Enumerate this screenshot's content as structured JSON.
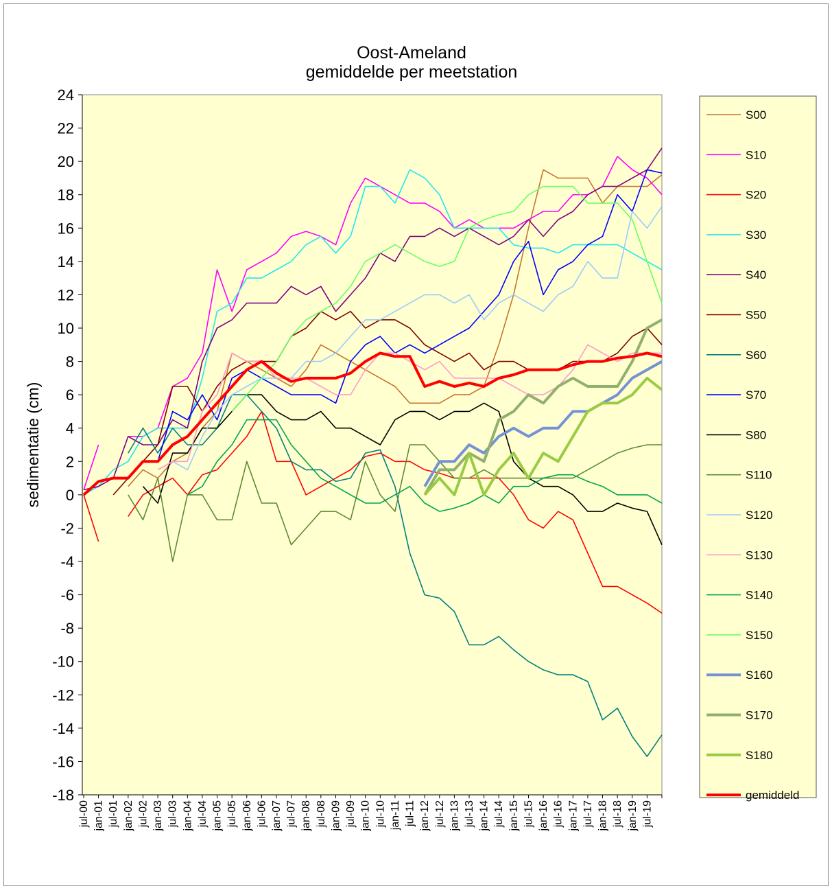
{
  "chart_data": {
    "type": "line",
    "title": "Oost-Ameland",
    "subtitle": "gemiddelde per meetstation",
    "y_label": "sedimentatie (cm)",
    "categories": [
      "jul-00",
      "jan-01",
      "jul-01",
      "jan-02",
      "jul-02",
      "jan-03",
      "jul-03",
      "jan-04",
      "jul-04",
      "jan-05",
      "jul-05",
      "jan-06",
      "jul-06",
      "jan-07",
      "jul-07",
      "jan-08",
      "jul-08",
      "jan-09",
      "jul-09",
      "jan-10",
      "jul-10",
      "jan-11",
      "jul-11",
      "jan-12",
      "jul-12",
      "jan-13",
      "jul-13",
      "jan-14",
      "jul-14",
      "jan-15",
      "jul-15",
      "jan-16",
      "jul-16",
      "jan-17",
      "jul-17",
      "jan-18",
      "jul-18",
      "jan-19",
      "jul-19",
      null
    ],
    "ylim": [
      -18,
      24
    ],
    "yticks": [
      -18,
      -16,
      -14,
      -12,
      -10,
      -8,
      -6,
      -4,
      -2,
      0,
      2,
      4,
      6,
      8,
      10,
      12,
      14,
      16,
      18,
      20,
      22,
      24
    ],
    "series": [
      {
        "name": "S00",
        "color": "#c8742f",
        "width": 1.6,
        "values": [
          null,
          null,
          null,
          0.5,
          1.5,
          1,
          2,
          2.5,
          4,
          5,
          8.5,
          8,
          7.5,
          7,
          6.5,
          7.5,
          9,
          8.5,
          8,
          7.5,
          7,
          6.5,
          5.5,
          5.5,
          5.5,
          6,
          6,
          6.5,
          9,
          12,
          16,
          19.5,
          19,
          19,
          19,
          17.5,
          18.5,
          18.5,
          18.5,
          19.2
        ]
      },
      {
        "name": "S10",
        "color": "#ff00ff",
        "width": 1.6,
        "values": [
          0.3,
          3,
          null,
          3.5,
          3.5,
          4,
          6.5,
          7,
          8.5,
          13.5,
          11,
          13.5,
          14,
          14.5,
          15.5,
          15.8,
          15.5,
          15,
          17.5,
          19,
          18.5,
          18,
          17.5,
          17.5,
          17,
          16,
          16.5,
          16,
          16,
          16,
          16.5,
          17,
          17,
          18,
          18,
          18.5,
          20.3,
          19.5,
          19,
          18
        ]
      },
      {
        "name": "S20",
        "color": "#ff0000",
        "width": 1.6,
        "values": [
          0,
          -2.8,
          null,
          -1.3,
          0,
          0.5,
          1,
          0,
          1.2,
          1.5,
          2.5,
          3.5,
          5,
          2,
          2,
          0,
          0.5,
          1,
          1.5,
          2.3,
          2.5,
          2,
          2,
          1.5,
          1.3,
          1,
          1,
          1,
          1,
          0,
          -1.5,
          -2,
          -1,
          -1.5,
          -3.5,
          -5.5,
          -5.5,
          -6,
          -6.5,
          -7.1
        ]
      },
      {
        "name": "S30",
        "color": "#22e6f0",
        "width": 1.6,
        "values": [
          0,
          0.5,
          1.5,
          2,
          3.5,
          4,
          4,
          4,
          7,
          11,
          11.5,
          13,
          13,
          13.5,
          14,
          15,
          15.5,
          14.5,
          15.5,
          18.5,
          18.5,
          17.5,
          19.5,
          19,
          18,
          16,
          16,
          16,
          16,
          15,
          14.8,
          14.8,
          14.5,
          15,
          15,
          15,
          15,
          14.5,
          14,
          13.5
        ]
      },
      {
        "name": "S40",
        "color": "#800080",
        "width": 1.6,
        "values": [
          0.3,
          0.5,
          1,
          3.5,
          3,
          3,
          4.5,
          4,
          8,
          10,
          10.5,
          11.5,
          11.5,
          11.5,
          12.5,
          12,
          12.5,
          11,
          12,
          13,
          14.5,
          14,
          15.5,
          15.5,
          16,
          15.5,
          16,
          15.5,
          15,
          15.5,
          16.5,
          15.5,
          16.5,
          17,
          18,
          18.5,
          18.5,
          19,
          19.5,
          20.8
        ]
      },
      {
        "name": "S50",
        "color": "#800000",
        "width": 1.6,
        "values": [
          null,
          null,
          0,
          1,
          2,
          3,
          6.5,
          6.5,
          5,
          6.5,
          7.5,
          8,
          8,
          8,
          9.5,
          10,
          11,
          10.5,
          11,
          10,
          10.5,
          10.5,
          10,
          9,
          8.5,
          8,
          8.5,
          7.5,
          8,
          8,
          7.5,
          7.5,
          7.5,
          8,
          8,
          8,
          8.5,
          9.5,
          10,
          9
        ]
      },
      {
        "name": "S60",
        "color": "#008080",
        "width": 1.6,
        "values": [
          null,
          null,
          null,
          2.5,
          4,
          2.5,
          4,
          3,
          3,
          4,
          6,
          6,
          5,
          4,
          2,
          1.5,
          1.5,
          0.8,
          1,
          2.5,
          2.7,
          0.5,
          -3.5,
          -6,
          -6.2,
          -7,
          -9,
          -9,
          -8.5,
          -9.3,
          -10,
          -10.5,
          -10.8,
          -10.8,
          -11.2,
          -13.5,
          -12.8,
          -14.5,
          -15.7,
          -14.4
        ]
      },
      {
        "name": "S70",
        "color": "#0000ff",
        "width": 1.6,
        "values": [
          null,
          null,
          null,
          null,
          null,
          2,
          5,
          4.5,
          6,
          4.5,
          7,
          7.5,
          7,
          6.5,
          6,
          6,
          6,
          5.5,
          8,
          9,
          9.5,
          8.5,
          9,
          8.5,
          9,
          9.5,
          10,
          11,
          12,
          14,
          15.2,
          12,
          13.5,
          14,
          15,
          15.5,
          18,
          17,
          19.5,
          19.3
        ]
      },
      {
        "name": "S80",
        "color": "#000000",
        "width": 1.6,
        "values": [
          null,
          null,
          null,
          null,
          0.5,
          -0.5,
          2.5,
          2.5,
          4,
          4,
          5,
          6,
          6,
          5,
          4.5,
          4.5,
          5,
          4,
          4,
          3.5,
          3,
          4.5,
          5,
          5,
          4.5,
          5,
          5,
          5.5,
          5,
          2,
          1,
          0.5,
          0.5,
          0,
          -1,
          -1,
          -0.5,
          -0.8,
          -1,
          -3
        ]
      },
      {
        "name": "S110",
        "color": "#5f8a35",
        "width": 1.6,
        "values": [
          null,
          null,
          null,
          0,
          -1.5,
          1,
          -4,
          0,
          0,
          -1.5,
          -1.5,
          2,
          -0.5,
          -0.5,
          -3,
          -2,
          -1,
          -1,
          -1.5,
          2,
          0,
          -1,
          3,
          3,
          2,
          1,
          1,
          1.5,
          1,
          1,
          1,
          1,
          1,
          1,
          1.5,
          2,
          2.5,
          2.8,
          3,
          3
        ]
      },
      {
        "name": "S120",
        "color": "#99ccff",
        "width": 1.6,
        "values": [
          null,
          null,
          null,
          null,
          null,
          1.5,
          2,
          1.5,
          3.5,
          5,
          6,
          6.5,
          7,
          7,
          7,
          8,
          8,
          8.5,
          9.5,
          10.5,
          10.5,
          11,
          11.5,
          12,
          12,
          11.5,
          12,
          10.5,
          11.5,
          12,
          11.5,
          11,
          12,
          12.5,
          14,
          13,
          13,
          17,
          16,
          17.3
        ]
      },
      {
        "name": "S130",
        "color": "#ff99cc",
        "width": 1.6,
        "values": [
          null,
          null,
          null,
          null,
          null,
          1.5,
          2,
          2,
          5,
          6,
          8.5,
          8,
          8,
          7,
          7,
          7,
          6.5,
          6,
          6,
          7.5,
          8.5,
          8.5,
          8,
          7.5,
          8,
          7,
          7,
          7,
          7,
          6.5,
          6,
          6,
          6.5,
          7.5,
          9,
          8.5,
          8,
          8.5,
          8.5,
          8.5
        ]
      },
      {
        "name": "S140",
        "color": "#00a550",
        "width": 1.6,
        "values": [
          null,
          null,
          null,
          null,
          null,
          null,
          null,
          0,
          0.5,
          2,
          3,
          4.5,
          4.5,
          4.5,
          3,
          2,
          1,
          0.5,
          0,
          -0.5,
          -0.5,
          0,
          0.5,
          -0.5,
          -1,
          -0.8,
          -0.5,
          0,
          -0.5,
          0.5,
          0.5,
          1,
          1.2,
          1.2,
          0.8,
          0.5,
          0,
          0,
          0,
          -0.5
        ]
      },
      {
        "name": "S150",
        "color": "#66ff66",
        "width": 1.6,
        "values": [
          null,
          null,
          null,
          null,
          null,
          null,
          null,
          null,
          null,
          null,
          5,
          6,
          7,
          8,
          9.5,
          10.5,
          11,
          11.5,
          12.5,
          14,
          14.5,
          15,
          14.5,
          14,
          13.7,
          14,
          16,
          16.5,
          16.8,
          17,
          18,
          18.5,
          18.5,
          18.5,
          17.5,
          17.5,
          17.5,
          16.5,
          14,
          11.5
        ]
      },
      {
        "name": "S160",
        "color": "#7492d4",
        "width": 4,
        "values": [
          null,
          null,
          null,
          null,
          null,
          null,
          null,
          null,
          null,
          null,
          null,
          null,
          null,
          null,
          null,
          null,
          null,
          null,
          null,
          null,
          null,
          null,
          null,
          0.5,
          2,
          2,
          3,
          2.5,
          3.5,
          4,
          3.5,
          4,
          4,
          5,
          5,
          5.5,
          6,
          7,
          7.5,
          8
        ]
      },
      {
        "name": "S170",
        "color": "#92b06d",
        "width": 4,
        "values": [
          null,
          null,
          null,
          null,
          null,
          null,
          null,
          null,
          null,
          null,
          null,
          null,
          null,
          null,
          null,
          null,
          null,
          null,
          null,
          null,
          null,
          null,
          null,
          0,
          1.5,
          1.5,
          2.5,
          2,
          4.5,
          5,
          6,
          5.5,
          6.5,
          7,
          6.5,
          6.5,
          6.5,
          8,
          10,
          10.5
        ]
      },
      {
        "name": "S180",
        "color": "#99cc44",
        "width": 4,
        "values": [
          null,
          null,
          null,
          null,
          null,
          null,
          null,
          null,
          null,
          null,
          null,
          null,
          null,
          null,
          null,
          null,
          null,
          null,
          null,
          null,
          null,
          null,
          null,
          0,
          1,
          0,
          2.5,
          0,
          1.5,
          2.5,
          1,
          2.5,
          2,
          3.5,
          5,
          5.5,
          5.5,
          6,
          7,
          6.3
        ]
      },
      {
        "name": "gemiddeld",
        "color": "#ff0000",
        "width": 4,
        "values": [
          0,
          0.8,
          1,
          1,
          2,
          2,
          3,
          3.5,
          4.5,
          5.5,
          6.5,
          7.5,
          8,
          7.3,
          6.8,
          7,
          7,
          7,
          7.3,
          8,
          8.5,
          8.3,
          8.3,
          6.5,
          6.8,
          6.5,
          6.7,
          6.5,
          7,
          7.2,
          7.5,
          7.5,
          7.5,
          7.8,
          8,
          8,
          8.2,
          8.3,
          8.5,
          8.3
        ]
      }
    ]
  }
}
